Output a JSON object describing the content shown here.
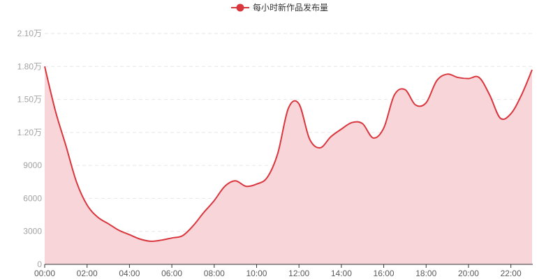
{
  "chart_data": {
    "type": "area",
    "title": "",
    "xlabel": "",
    "ylabel": "",
    "legend_position": "top-center",
    "grid": true,
    "colors": {
      "line": "#d9363e",
      "area": "#f7d5d8",
      "grid": "#e6e6e6",
      "axis": "#333333"
    },
    "ylim": [
      0,
      21000
    ],
    "y_ticks": [
      {
        "value": 0,
        "label": "0"
      },
      {
        "value": 3000,
        "label": "3000"
      },
      {
        "value": 6000,
        "label": "6000"
      },
      {
        "value": 9000,
        "label": "9000"
      },
      {
        "value": 12000,
        "label": "1.20万"
      },
      {
        "value": 15000,
        "label": "1.50万"
      },
      {
        "value": 18000,
        "label": "1.80万"
      },
      {
        "value": 21000,
        "label": "2.10万"
      }
    ],
    "x_ticks": [
      {
        "hour": 0,
        "label": "00:00"
      },
      {
        "hour": 2,
        "label": "02:00"
      },
      {
        "hour": 4,
        "label": "04:00"
      },
      {
        "hour": 6,
        "label": "06:00"
      },
      {
        "hour": 8,
        "label": "08:00"
      },
      {
        "hour": 10,
        "label": "10:00"
      },
      {
        "hour": 12,
        "label": "12:00"
      },
      {
        "hour": 14,
        "label": "14:00"
      },
      {
        "hour": 16,
        "label": "16:00"
      },
      {
        "hour": 18,
        "label": "18:00"
      },
      {
        "hour": 20,
        "label": "20:00"
      },
      {
        "hour": 22,
        "label": "22:00"
      }
    ],
    "x_range_hours": [
      0,
      23
    ],
    "series": [
      {
        "name": "每小时新作品发布量",
        "points": [
          [
            0,
            18000
          ],
          [
            0.5,
            14000
          ],
          [
            1,
            10800
          ],
          [
            1.5,
            7500
          ],
          [
            2,
            5400
          ],
          [
            2.5,
            4300
          ],
          [
            3,
            3700
          ],
          [
            3.5,
            3100
          ],
          [
            4,
            2700
          ],
          [
            4.5,
            2300
          ],
          [
            5,
            2100
          ],
          [
            5.5,
            2200
          ],
          [
            6,
            2400
          ],
          [
            6.5,
            2600
          ],
          [
            7,
            3500
          ],
          [
            7.5,
            4700
          ],
          [
            8,
            5800
          ],
          [
            8.5,
            7100
          ],
          [
            9,
            7600
          ],
          [
            9.5,
            7100
          ],
          [
            10,
            7300
          ],
          [
            10.5,
            7900
          ],
          [
            11,
            10100
          ],
          [
            11.5,
            14200
          ],
          [
            12,
            14600
          ],
          [
            12.5,
            11400
          ],
          [
            13,
            10600
          ],
          [
            13.5,
            11600
          ],
          [
            14,
            12300
          ],
          [
            14.5,
            12900
          ],
          [
            15,
            12800
          ],
          [
            15.5,
            11500
          ],
          [
            16,
            12400
          ],
          [
            16.5,
            15400
          ],
          [
            17,
            15900
          ],
          [
            17.5,
            14500
          ],
          [
            18,
            14700
          ],
          [
            18.5,
            16700
          ],
          [
            19,
            17300
          ],
          [
            19.5,
            17000
          ],
          [
            20,
            16900
          ],
          [
            20.5,
            17000
          ],
          [
            21,
            15400
          ],
          [
            21.5,
            13300
          ],
          [
            22,
            13700
          ],
          [
            22.5,
            15400
          ],
          [
            23,
            17700
          ]
        ]
      }
    ]
  }
}
